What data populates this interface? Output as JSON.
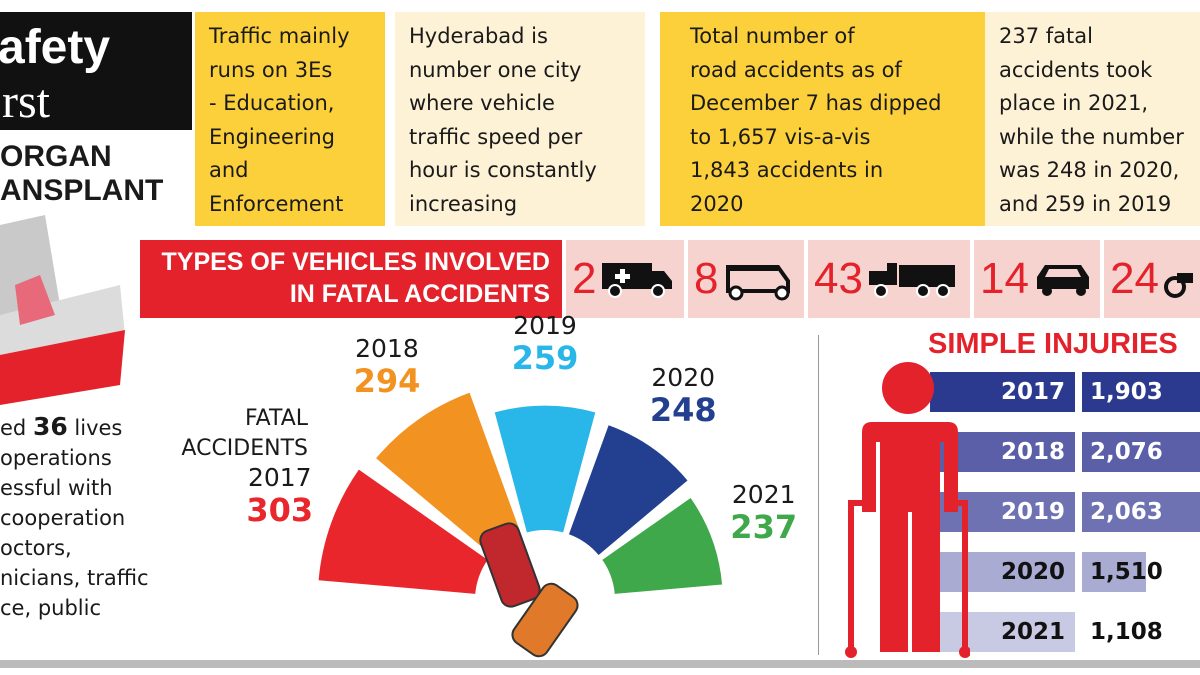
{
  "title": {
    "line1": "afety",
    "line2": "rst",
    "sub1": "ORGAN",
    "sub2": "ANSPLANT"
  },
  "facts": [
    {
      "lines": [
        "Traffic mainly",
        "runs on 3Es",
        "- Education,",
        "Engineering",
        "and",
        "Enforcement"
      ],
      "bg": "#fcd03a"
    },
    {
      "lines": [
        "Hyderabad is",
        "number one city",
        "where vehicle",
        "traffic speed per",
        "hour is constantly",
        "increasing"
      ],
      "bg": "#fdf1d6"
    },
    {
      "lines": [
        "Total number of",
        "road accidents as of",
        "December 7 has dipped",
        "to 1,657 vis-a-vis",
        "1,843 accidents in",
        "2020"
      ],
      "bg": "#fcd03a"
    },
    {
      "lines": [
        "237 fatal",
        "accidents took",
        "place in 2021,",
        "while the number",
        "was 248 in 2020,",
        "and 259 in 2019"
      ],
      "bg": "#fdf1d6"
    }
  ],
  "vehicles": {
    "heading_line1": "TYPES OF VEHICLES INVOLVED",
    "heading_line2": "IN FATAL ACCIDENTS",
    "items": [
      {
        "count": "2",
        "icon": "ambulance-icon"
      },
      {
        "count": "8",
        "icon": "auto-rickshaw-icon"
      },
      {
        "count": "43",
        "icon": "truck-icon"
      },
      {
        "count": "14",
        "icon": "car-icon"
      },
      {
        "count": "24",
        "icon": "two-wheeler-icon"
      }
    ]
  },
  "left_note": {
    "l1a": "ed ",
    "l1b": "36",
    "l1c": " lives",
    "lines": [
      "operations",
      "essful with",
      "cooperation",
      "octors,",
      "nicians, traffic",
      "ce, public"
    ]
  },
  "colors": {
    "red": "#e4222b",
    "yellow": "#fcd03a"
  },
  "chart_data": [
    {
      "type": "pie",
      "title": "FATAL ACCIDENTS",
      "categories": [
        "2017",
        "2018",
        "2019",
        "2020",
        "2021"
      ],
      "values": [
        303,
        294,
        259,
        248,
        237
      ],
      "value_labels": [
        "303",
        "294",
        "259",
        "248",
        "237"
      ],
      "colors": [
        "#e8262b",
        "#f29220",
        "#29b6e8",
        "#233f8f",
        "#3fa84a"
      ]
    },
    {
      "type": "bar",
      "title": "SIMPLE INJURIES",
      "categories": [
        "2017",
        "2018",
        "2019",
        "2020",
        "2021"
      ],
      "values": [
        1903,
        2076,
        2063,
        1510,
        1108
      ],
      "value_labels": [
        "1,903",
        "2,076",
        "2,063",
        "1,510",
        "1,108"
      ],
      "colors": [
        "#2b3a8f",
        "#5a5fa8",
        "#6e72b3",
        "#a9abd3",
        "#c8c9e3"
      ]
    }
  ]
}
